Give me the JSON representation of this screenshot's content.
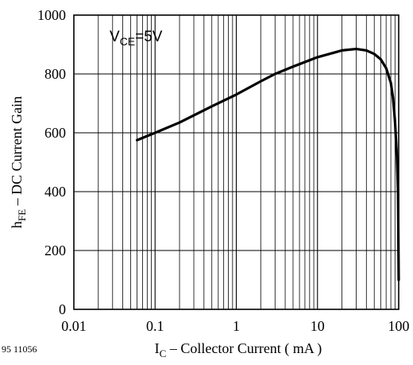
{
  "chart_data": {
    "type": "line",
    "x_scale": "log",
    "xlim": [
      0.01,
      100
    ],
    "ylim": [
      0,
      1000
    ],
    "x_ticks": [
      0.01,
      0.1,
      1,
      10,
      100
    ],
    "x_tick_labels": [
      "0.01",
      "0.1",
      "1",
      "10",
      "100"
    ],
    "y_ticks": [
      0,
      200,
      400,
      600,
      800,
      1000
    ],
    "y_tick_labels": [
      "0",
      "200",
      "400",
      "600",
      "800",
      "1000"
    ],
    "xlabel": {
      "main": "I",
      "sub": "C",
      "rest": " – Collector Current ( mA )"
    },
    "ylabel": {
      "main": "h",
      "sub": "FE",
      "rest": " – DC Current Gain"
    },
    "annotation": {
      "main": "V",
      "sub": "CE",
      "rest": "=5V"
    },
    "grid": true,
    "series": [
      {
        "x": [
          0.06,
          0.1,
          0.2,
          0.5,
          1,
          2,
          3,
          5,
          10,
          20,
          30,
          40,
          50,
          60,
          70,
          80,
          85,
          90,
          95,
          98,
          100
        ],
        "y": [
          575,
          600,
          635,
          690,
          730,
          775,
          800,
          825,
          857,
          880,
          885,
          880,
          868,
          850,
          820,
          770,
          720,
          640,
          520,
          400,
          100
        ]
      }
    ]
  },
  "figure_id": "95 11056"
}
